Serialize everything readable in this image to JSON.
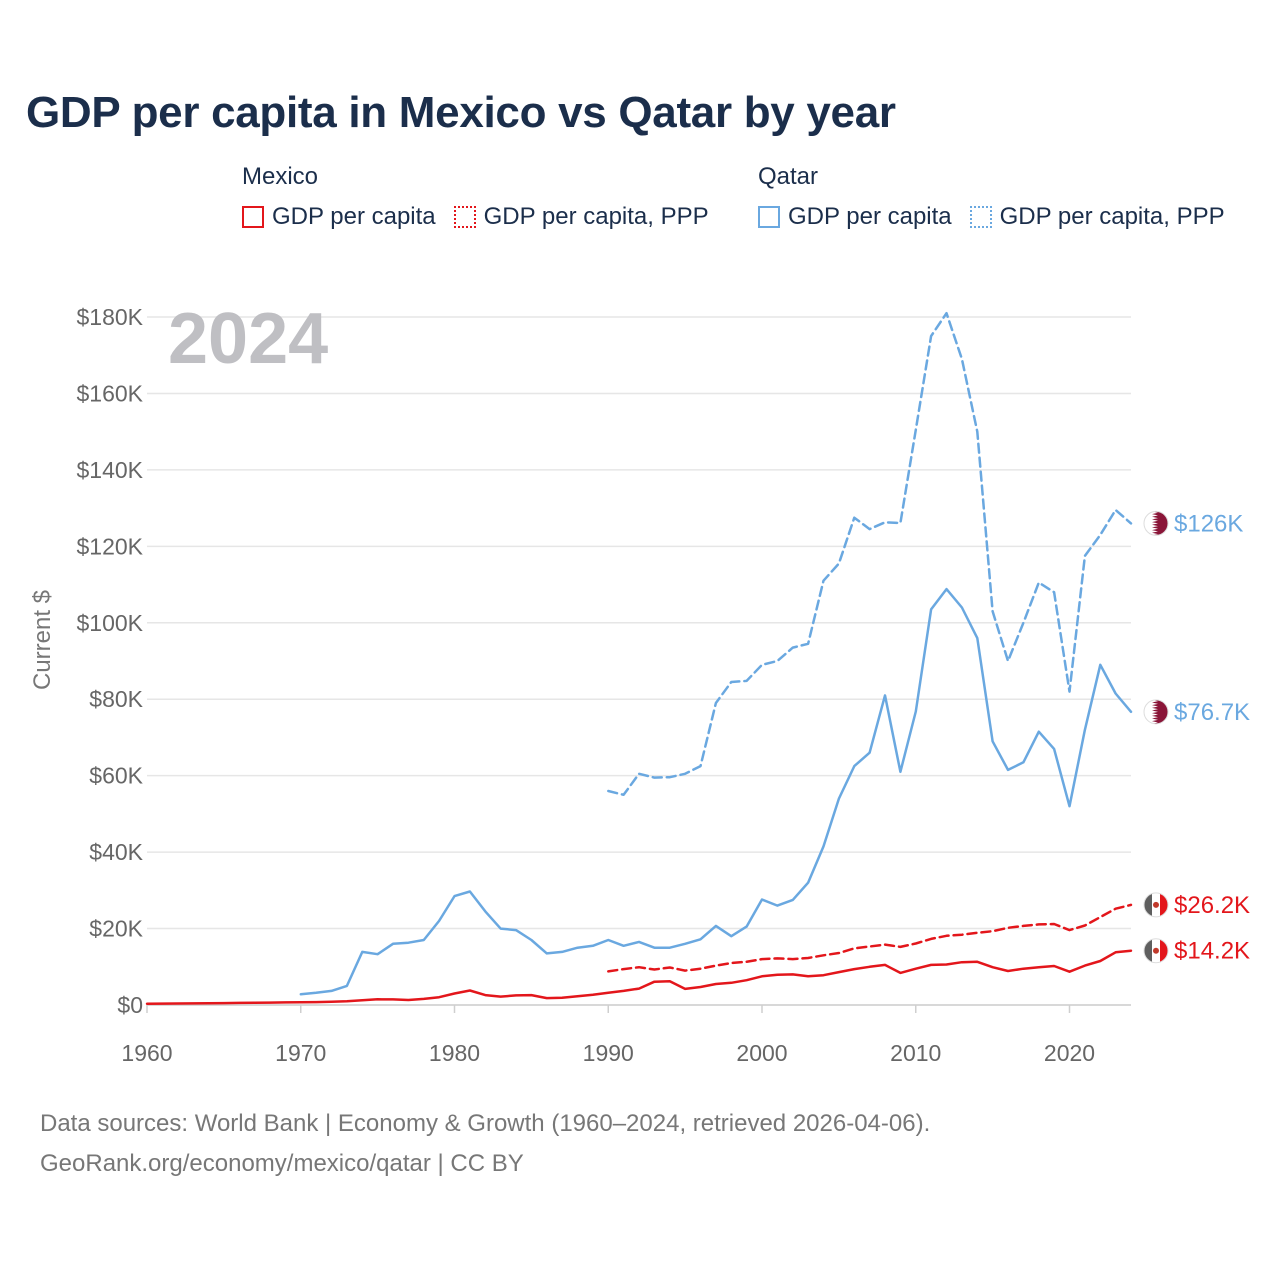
{
  "title": "GDP per capita in Mexico vs Qatar by year",
  "legend": {
    "groups": [
      {
        "name": "Mexico",
        "items": [
          {
            "label": "GDP per capita",
            "color": "#e3161b",
            "style": "solid"
          },
          {
            "label": "GDP per capita, PPP",
            "color": "#e3161b",
            "style": "dotted"
          }
        ]
      },
      {
        "name": "Qatar",
        "items": [
          {
            "label": "GDP per capita",
            "color": "#6aa8e0",
            "style": "solid"
          },
          {
            "label": "GDP per capita, PPP",
            "color": "#6aa8e0",
            "style": "dotted"
          }
        ]
      }
    ]
  },
  "year_watermark": "2024",
  "footer": {
    "line1": "Data sources: World Bank | Economy & Growth (1960–2024, retrieved 2026-04-06).",
    "line2": "GeoRank.org/economy/mexico/qatar | CC BY"
  },
  "chart_data": {
    "type": "line",
    "title": "GDP per capita in Mexico vs Qatar by year",
    "xlabel": "",
    "ylabel": "Current $",
    "xlim": [
      1960,
      2024
    ],
    "ylim": [
      0,
      180000
    ],
    "x_ticks": [
      1960,
      1970,
      1980,
      1990,
      2000,
      2010,
      2020
    ],
    "x_tick_labels": [
      "1960",
      "1970",
      "1980",
      "1990",
      "2000",
      "2010",
      "2020"
    ],
    "y_ticks": [
      0,
      20000,
      40000,
      60000,
      80000,
      100000,
      120000,
      140000,
      160000,
      180000
    ],
    "y_tick_labels": [
      "$0",
      "$20K",
      "$40K",
      "$60K",
      "$80K",
      "$100K",
      "$120K",
      "$140K",
      "$160K",
      "$180K"
    ],
    "grid": true,
    "series": [
      {
        "key": "qa_ppp",
        "country": "Qatar",
        "name": "GDP per capita, PPP",
        "color": "#6aa8e0",
        "dash": "dashed",
        "end_label": "$126K",
        "flag": "qatar",
        "points": [
          [
            1990,
            56000
          ],
          [
            1991,
            55000
          ],
          [
            1992,
            60500
          ],
          [
            1993,
            59500
          ],
          [
            1994,
            59600
          ],
          [
            1995,
            60500
          ],
          [
            1996,
            62500
          ],
          [
            1997,
            79000
          ],
          [
            1998,
            84500
          ],
          [
            1999,
            84800
          ],
          [
            2000,
            89000
          ],
          [
            2001,
            90000
          ],
          [
            2002,
            93500
          ],
          [
            2003,
            94500
          ],
          [
            2004,
            111000
          ],
          [
            2005,
            115500
          ],
          [
            2006,
            127500
          ],
          [
            2007,
            124500
          ],
          [
            2008,
            126300
          ],
          [
            2009,
            126100
          ],
          [
            2010,
            150500
          ],
          [
            2011,
            175000
          ],
          [
            2012,
            181000
          ],
          [
            2013,
            169000
          ],
          [
            2014,
            150000
          ],
          [
            2015,
            103000
          ],
          [
            2016,
            90000
          ],
          [
            2017,
            100000
          ],
          [
            2018,
            110500
          ],
          [
            2019,
            108000
          ],
          [
            2020,
            82000
          ],
          [
            2021,
            117500
          ],
          [
            2022,
            123000
          ],
          [
            2023,
            129500
          ],
          [
            2024,
            126000
          ]
        ]
      },
      {
        "key": "qa_gdp",
        "country": "Qatar",
        "name": "GDP per capita",
        "color": "#6aa8e0",
        "dash": "solid",
        "end_label": "$76.7K",
        "flag": "qatar",
        "points": [
          [
            1970,
            2800
          ],
          [
            1971,
            3200
          ],
          [
            1972,
            3700
          ],
          [
            1973,
            5000
          ],
          [
            1974,
            13900
          ],
          [
            1975,
            13300
          ],
          [
            1976,
            16000
          ],
          [
            1977,
            16300
          ],
          [
            1978,
            17000
          ],
          [
            1979,
            22000
          ],
          [
            1980,
            28500
          ],
          [
            1981,
            29700
          ],
          [
            1982,
            24500
          ],
          [
            1983,
            20000
          ],
          [
            1984,
            19600
          ],
          [
            1985,
            17000
          ],
          [
            1986,
            13500
          ],
          [
            1987,
            13900
          ],
          [
            1988,
            15000
          ],
          [
            1989,
            15500
          ],
          [
            1990,
            17000
          ],
          [
            1991,
            15500
          ],
          [
            1992,
            16500
          ],
          [
            1993,
            15000
          ],
          [
            1994,
            15000
          ],
          [
            1995,
            16000
          ],
          [
            1996,
            17200
          ],
          [
            1997,
            20700
          ],
          [
            1998,
            18000
          ],
          [
            1999,
            20500
          ],
          [
            2000,
            27600
          ],
          [
            2001,
            26000
          ],
          [
            2002,
            27500
          ],
          [
            2003,
            32000
          ],
          [
            2004,
            41500
          ],
          [
            2005,
            54000
          ],
          [
            2006,
            62500
          ],
          [
            2007,
            66000
          ],
          [
            2008,
            81000
          ],
          [
            2009,
            61000
          ],
          [
            2010,
            76800
          ],
          [
            2011,
            103500
          ],
          [
            2012,
            108800
          ],
          [
            2013,
            104000
          ],
          [
            2014,
            96000
          ],
          [
            2015,
            69000
          ],
          [
            2016,
            61500
          ],
          [
            2017,
            63500
          ],
          [
            2018,
            71500
          ],
          [
            2019,
            67000
          ],
          [
            2020,
            52000
          ],
          [
            2021,
            72000
          ],
          [
            2022,
            89000
          ],
          [
            2023,
            81500
          ],
          [
            2024,
            76700
          ]
        ]
      },
      {
        "key": "mx_ppp",
        "country": "Mexico",
        "name": "GDP per capita, PPP",
        "color": "#e3161b",
        "dash": "dashed",
        "end_label": "$26.2K",
        "flag": "mexico",
        "points": [
          [
            1990,
            8800
          ],
          [
            1991,
            9400
          ],
          [
            1992,
            9900
          ],
          [
            1993,
            9300
          ],
          [
            1994,
            9800
          ],
          [
            1995,
            9000
          ],
          [
            1996,
            9500
          ],
          [
            1997,
            10300
          ],
          [
            1998,
            11000
          ],
          [
            1999,
            11300
          ],
          [
            2000,
            12000
          ],
          [
            2001,
            12200
          ],
          [
            2002,
            12000
          ],
          [
            2003,
            12300
          ],
          [
            2004,
            13000
          ],
          [
            2005,
            13600
          ],
          [
            2006,
            14800
          ],
          [
            2007,
            15300
          ],
          [
            2008,
            15800
          ],
          [
            2009,
            15200
          ],
          [
            2010,
            16100
          ],
          [
            2011,
            17300
          ],
          [
            2012,
            18100
          ],
          [
            2013,
            18400
          ],
          [
            2014,
            18900
          ],
          [
            2015,
            19300
          ],
          [
            2016,
            20200
          ],
          [
            2017,
            20700
          ],
          [
            2018,
            21100
          ],
          [
            2019,
            21200
          ],
          [
            2020,
            19600
          ],
          [
            2021,
            20800
          ],
          [
            2022,
            23000
          ],
          [
            2023,
            25200
          ],
          [
            2024,
            26200
          ]
        ]
      },
      {
        "key": "mx_gdp",
        "country": "Mexico",
        "name": "GDP per capita",
        "color": "#e3161b",
        "dash": "solid",
        "end_label": "$14.2K",
        "flag": "mexico",
        "points": [
          [
            1960,
            350
          ],
          [
            1961,
            370
          ],
          [
            1962,
            390
          ],
          [
            1963,
            420
          ],
          [
            1964,
            480
          ],
          [
            1965,
            510
          ],
          [
            1966,
            550
          ],
          [
            1967,
            590
          ],
          [
            1968,
            630
          ],
          [
            1969,
            680
          ],
          [
            1970,
            700
          ],
          [
            1971,
            750
          ],
          [
            1972,
            830
          ],
          [
            1973,
            980
          ],
          [
            1974,
            1230
          ],
          [
            1975,
            1480
          ],
          [
            1976,
            1460
          ],
          [
            1977,
            1320
          ],
          [
            1978,
            1600
          ],
          [
            1979,
            2050
          ],
          [
            1980,
            3000
          ],
          [
            1981,
            3800
          ],
          [
            1982,
            2600
          ],
          [
            1983,
            2200
          ],
          [
            1984,
            2500
          ],
          [
            1985,
            2600
          ],
          [
            1986,
            1800
          ],
          [
            1987,
            1900
          ],
          [
            1988,
            2300
          ],
          [
            1989,
            2700
          ],
          [
            1990,
            3200
          ],
          [
            1991,
            3700
          ],
          [
            1992,
            4300
          ],
          [
            1993,
            6100
          ],
          [
            1994,
            6200
          ],
          [
            1995,
            4200
          ],
          [
            1996,
            4700
          ],
          [
            1997,
            5500
          ],
          [
            1998,
            5800
          ],
          [
            1999,
            6500
          ],
          [
            2000,
            7500
          ],
          [
            2001,
            7900
          ],
          [
            2002,
            8000
          ],
          [
            2003,
            7500
          ],
          [
            2004,
            7800
          ],
          [
            2005,
            8600
          ],
          [
            2006,
            9400
          ],
          [
            2007,
            10000
          ],
          [
            2008,
            10500
          ],
          [
            2009,
            8400
          ],
          [
            2010,
            9500
          ],
          [
            2011,
            10500
          ],
          [
            2012,
            10600
          ],
          [
            2013,
            11200
          ],
          [
            2014,
            11300
          ],
          [
            2015,
            9900
          ],
          [
            2016,
            8900
          ],
          [
            2017,
            9500
          ],
          [
            2018,
            9900
          ],
          [
            2019,
            10200
          ],
          [
            2020,
            8700
          ],
          [
            2021,
            10300
          ],
          [
            2022,
            11500
          ],
          [
            2023,
            13800
          ],
          [
            2024,
            14200
          ]
        ]
      }
    ]
  }
}
